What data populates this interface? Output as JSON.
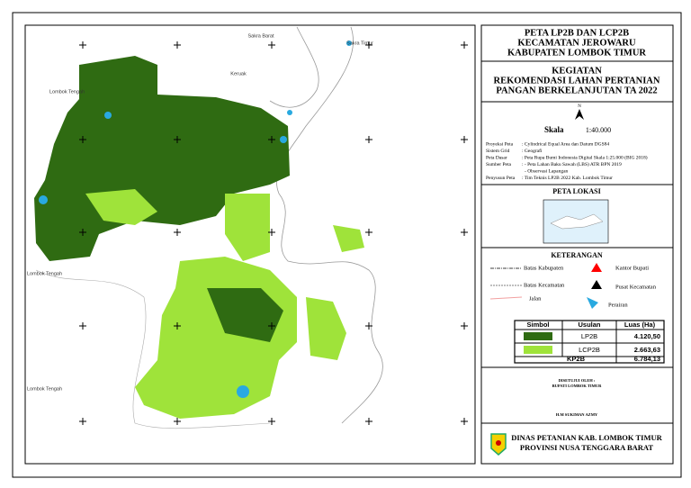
{
  "map": {
    "labels": [
      "Sakra Barat",
      "Sakra Timur",
      "Keruak",
      "Lombok Tengah",
      "Lombok Tengah",
      "Lombok Tengah"
    ]
  },
  "title": [
    "PETA LP2B DAN LCP2B",
    "KECAMATAN JEROWARU",
    "KABUPATEN LOMBOK TIMUR"
  ],
  "activity": {
    "heading": "KEGIATAN",
    "lines": [
      "REKOMENDASI LAHAN PERTANIAN",
      "PANGAN BERKELANJUTAN TA 2022"
    ]
  },
  "north": "N",
  "scale": {
    "label": "Skala",
    "value": "1:40.000"
  },
  "metadata": [
    [
      "Proyeksi Peta",
      ": Cylindrical Equal Area dan Datum DGS84"
    ],
    [
      "Sistem Grid",
      ": Geografi"
    ],
    [
      "Peta Dasar",
      ": Peta Rupa Bumi Indonesia Digital Skala 1:25.000 (BIG 2018)"
    ],
    [
      "Sumber Peta",
      ": - Peta Lahan Baku Sawah (LBS) ATR BPN 2019"
    ],
    [
      "- Observasi Lapangan"
    ],
    [
      "Penyusun Peta",
      ": Tim Teknis LP2B 2022 Kab. Lombok Timur"
    ]
  ],
  "location_map": {
    "title": "PETA LOKASI"
  },
  "legend": {
    "title": "KETERANGAN",
    "items": [
      "Batas Kabupaten",
      "Kantor Bupati",
      "Batas Kecamatan",
      "Pusat Kecamatan",
      "Jalan",
      "Perairan"
    ]
  },
  "table": {
    "header": [
      "Simbol",
      "Usulan",
      "Luas (Ha)"
    ],
    "rows": [
      [
        "LP2B",
        "4.120,50"
      ],
      [
        "LCP2B",
        "2.663,63"
      ],
      [
        "KP2B",
        "6.784,13"
      ]
    ]
  },
  "approval": {
    "lines": [
      "DISETUJUI OLEH :",
      "BUPATI LOMBOK TIMUR"
    ],
    "name": "H.M SUKIMAN AZMY"
  },
  "footer": [
    "DINAS PETANIAN KAB. LOMBOK TIMUR",
    "PROVINSI NUSA TENGGARA BARAT"
  ]
}
